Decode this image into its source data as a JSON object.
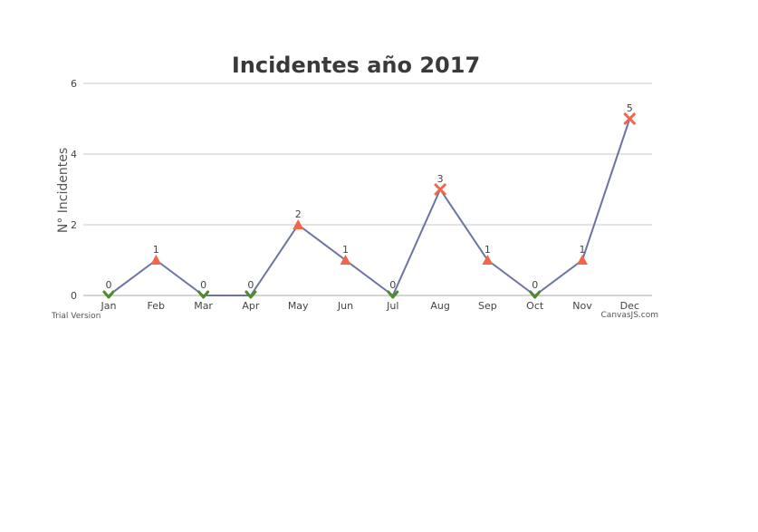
{
  "chart_data": {
    "type": "line",
    "title": "Incidentes año 2017",
    "xlabel": "",
    "ylabel": "N° Incidentes",
    "categories": [
      "Jan",
      "Feb",
      "Mar",
      "Apr",
      "May",
      "Jun",
      "Jul",
      "Aug",
      "Sep",
      "Oct",
      "Nov",
      "Dec"
    ],
    "values": [
      0,
      1,
      0,
      0,
      2,
      1,
      0,
      3,
      1,
      0,
      1,
      5
    ],
    "markers": [
      "check",
      "triangle",
      "check",
      "check",
      "triangle",
      "triangle",
      "check",
      "cross",
      "triangle",
      "check",
      "triangle",
      "cross"
    ],
    "ylim": [
      0,
      6
    ],
    "yticks": [
      0,
      2,
      4,
      6
    ],
    "grid": true,
    "data_labels": true,
    "colors": {
      "line": "#6b73a4",
      "check": "#4f8a2c",
      "triangle": "#f0674a",
      "cross": "#f0674a",
      "grid": "#c8c8c8"
    }
  },
  "credits": {
    "left": "Trial Version",
    "right": "CanvasJS.com"
  }
}
